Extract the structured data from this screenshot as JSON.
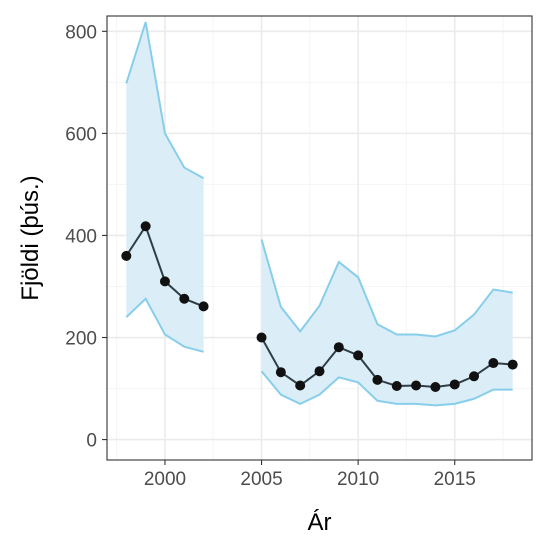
{
  "chart_data": {
    "type": "line",
    "title": "",
    "xlabel": "Ár",
    "ylabel": "Fjöldi (þús.)",
    "xlim": [
      1997.0,
      2019.0
    ],
    "ylim": [
      -40,
      830
    ],
    "x_ticks": [
      2000,
      2005,
      2010,
      2015
    ],
    "y_ticks": [
      0,
      200,
      400,
      600,
      800
    ],
    "grid": true,
    "legend": "none",
    "colors": {
      "band_fill": "#dbeef8",
      "band_line": "#87ceeb",
      "series_line": "#2f3e46",
      "point": "#111111",
      "grid_major": "#ebebeb",
      "grid_minor": "#f5f5f5",
      "axis": "#333333"
    },
    "segments": [
      {
        "x": [
          1998,
          1999,
          2000,
          2001,
          2002
        ],
        "estimate": [
          360,
          418,
          310,
          276,
          261
        ],
        "lower": [
          240,
          276,
          206,
          182,
          172
        ],
        "upper": [
          698,
          818,
          600,
          533,
          512
        ]
      },
      {
        "x": [
          2005,
          2006,
          2007,
          2008,
          2009,
          2010,
          2011,
          2012,
          2013,
          2014,
          2015,
          2016,
          2017,
          2018
        ],
        "estimate": [
          200,
          132,
          106,
          134,
          181,
          165,
          117,
          105,
          106,
          103,
          108,
          124,
          150,
          147
        ],
        "lower": [
          134,
          88,
          70,
          88,
          122,
          112,
          76,
          70,
          70,
          67,
          70,
          80,
          98,
          98
        ],
        "upper": [
          392,
          260,
          212,
          262,
          348,
          318,
          226,
          206,
          206,
          202,
          214,
          245,
          294,
          288
        ]
      }
    ]
  }
}
